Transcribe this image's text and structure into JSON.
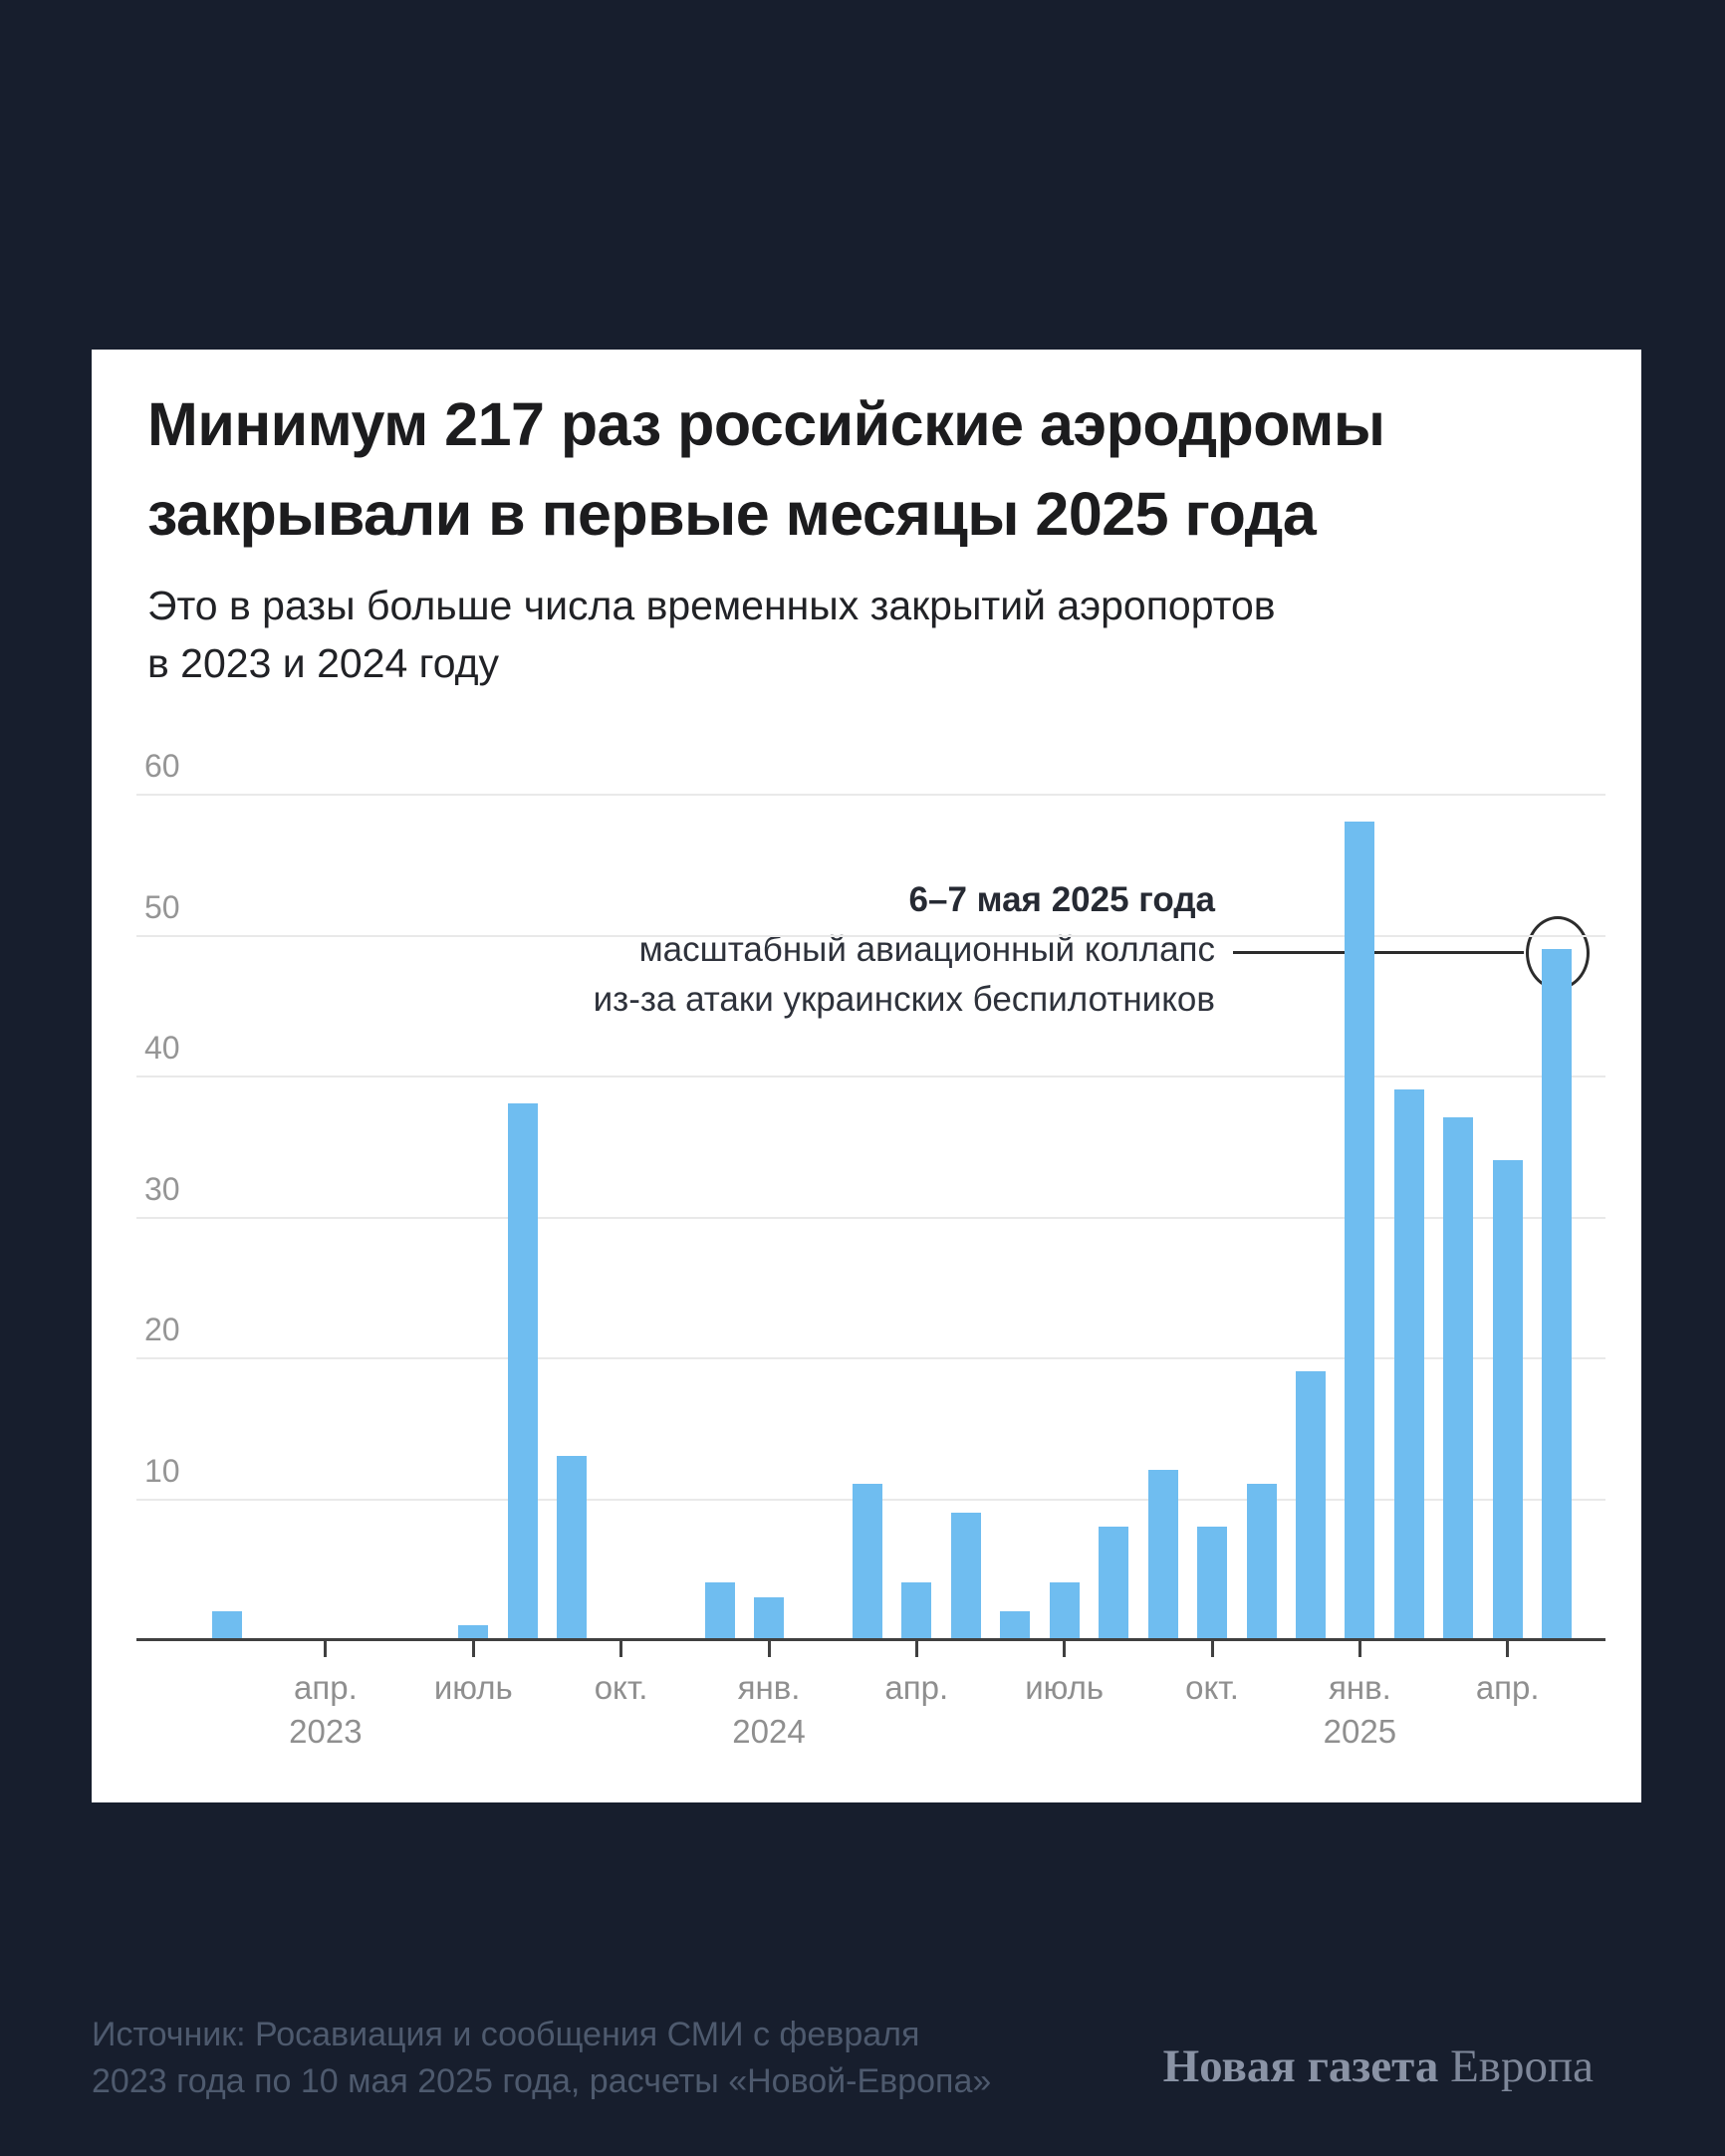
{
  "colors": {
    "background": "#171E2D",
    "card": "#FFFFFF",
    "bar": "#6FBDF0",
    "gridline": "#E9E9E9",
    "axis": "#404040",
    "axis_text": "#8F8F8F",
    "annotation_line": "#2C2C2C"
  },
  "header": {
    "title_line1": "Минимум 217 раз российские аэродромы",
    "title_line2": "закрывали в первые месяцы 2025 года",
    "subtitle_line1": "Это в разы больше числа временных закрытий аэропортов",
    "subtitle_line2": "в 2023 и 2024 году"
  },
  "chart_data": {
    "type": "bar",
    "title": "Минимум 217 раз российские аэродромы закрывали в первые месяцы 2025 года",
    "subtitle": "Это в разы больше числа временных закрытий аэропортов в 2023 и 2024 году",
    "xlabel": "",
    "ylabel": "",
    "ylim": [
      0,
      60
    ],
    "yticks": [
      10,
      20,
      30,
      40,
      50,
      60
    ],
    "grid": "horizontal",
    "legend": "none",
    "bar_color": "#6FBDF0",
    "categories": [
      "февр. 2023",
      "март 2023",
      "апр. 2023",
      "май 2023",
      "июнь 2023",
      "июль 2023",
      "авг. 2023",
      "сент. 2023",
      "окт. 2023",
      "нояб. 2023",
      "дек. 2023",
      "янв. 2024",
      "февр. 2024",
      "март 2024",
      "апр. 2024",
      "май 2024",
      "июнь 2024",
      "июль 2024",
      "авг. 2024",
      "сент. 2024",
      "окт. 2024",
      "нояб. 2024",
      "дек. 2024",
      "янв. 2025",
      "февр. 2025",
      "март 2025",
      "апр. 2025",
      "май 2025"
    ],
    "values": [
      2,
      0,
      0,
      0,
      0,
      1,
      38,
      13,
      0,
      0,
      4,
      3,
      0,
      11,
      4,
      9,
      2,
      4,
      8,
      12,
      8,
      11,
      19,
      58,
      39,
      37,
      34,
      49
    ],
    "xticks": [
      {
        "index": 2,
        "line1": "апр.",
        "line2": "2023"
      },
      {
        "index": 5,
        "line1": "июль",
        "line2": ""
      },
      {
        "index": 8,
        "line1": "окт.",
        "line2": ""
      },
      {
        "index": 11,
        "line1": "янв.",
        "line2": "2024"
      },
      {
        "index": 14,
        "line1": "апр.",
        "line2": ""
      },
      {
        "index": 17,
        "line1": "июль",
        "line2": ""
      },
      {
        "index": 20,
        "line1": "окт.",
        "line2": ""
      },
      {
        "index": 23,
        "line1": "янв.",
        "line2": "2025"
      },
      {
        "index": 26,
        "line1": "апр.",
        "line2": ""
      }
    ],
    "annotation": {
      "line1": "6–7 мая 2025 года",
      "line2": "масштабный авиационный коллапс",
      "line3": "из-за атаки украинских беспилотников",
      "points_to": "май 2025",
      "pointed_value": 49
    }
  },
  "footer": {
    "source_line1": "Источник: Росавиация и сообщения СМИ с февраля",
    "source_line2": "2023 года по 10 мая 2025 года, расчеты «Новой-Европа»",
    "logo_bold": "Новая газета",
    "logo_regular": "Европа"
  }
}
